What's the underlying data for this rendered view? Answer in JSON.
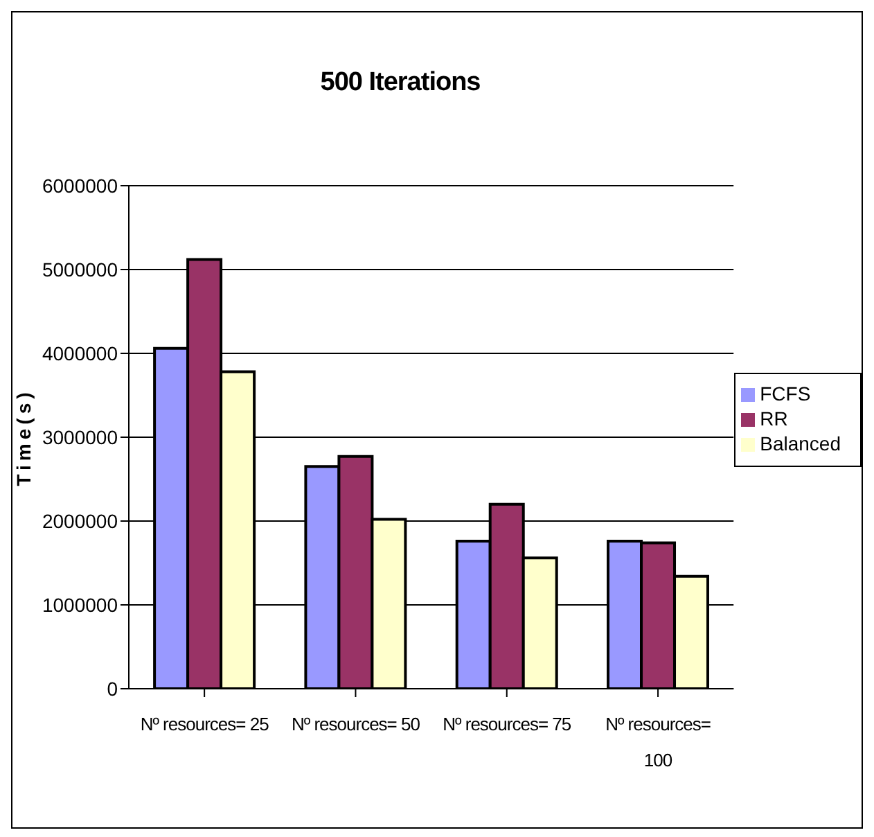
{
  "chart_data": {
    "type": "bar",
    "title": "500 Iterations",
    "ylabel": "Time(s)",
    "categories": [
      "Nº resources= 25",
      "Nº resources= 50",
      "Nº resources= 75",
      "Nº resources= 100"
    ],
    "series": [
      {
        "name": "FCFS",
        "color": "#9999ff",
        "values": [
          4060000,
          2650000,
          1760000,
          1760000
        ]
      },
      {
        "name": "RR",
        "color": "#993366",
        "values": [
          5120000,
          2770000,
          2200000,
          1740000
        ]
      },
      {
        "name": "Balanced",
        "color": "#ffffcc",
        "values": [
          3780000,
          2020000,
          1560000,
          1340000
        ]
      }
    ],
    "ylim": [
      0,
      6000000
    ],
    "yticks": [
      0,
      1000000,
      2000000,
      3000000,
      4000000,
      5000000,
      6000000
    ],
    "grid": "y",
    "legend": "right"
  }
}
